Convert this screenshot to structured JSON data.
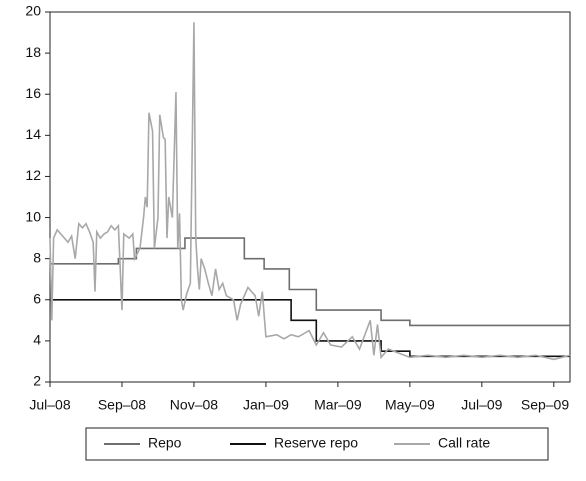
{
  "chart_data": {
    "type": "line",
    "xlim": [
      0,
      14.45
    ],
    "ylim": [
      2,
      20
    ],
    "xticks": [
      {
        "value": 0,
        "label": "Jul–08"
      },
      {
        "value": 2,
        "label": "Sep–08"
      },
      {
        "value": 4,
        "label": "Nov–08"
      },
      {
        "value": 6,
        "label": "Jan–09"
      },
      {
        "value": 8,
        "label": "Mar–09"
      },
      {
        "value": 10,
        "label": "May–09"
      },
      {
        "value": 12,
        "label": "Jul–09"
      },
      {
        "value": 14,
        "label": "Sep–09"
      }
    ],
    "yticks": [
      2,
      4,
      6,
      8,
      10,
      12,
      14,
      16,
      18,
      20
    ],
    "legend": "bottom",
    "series": [
      {
        "name": "Repo",
        "color": "#6e6e6e",
        "step": true,
        "x": [
          0,
          1.9,
          2.4,
          3.75,
          5.4,
          5.95,
          6.65,
          7.4,
          9.2,
          10.0,
          14.45
        ],
        "values": [
          7.75,
          8,
          8.5,
          9,
          8,
          7.5,
          6.5,
          5.5,
          5,
          4.75,
          4.75
        ]
      },
      {
        "name": "Reserve repo",
        "color": "#111111",
        "step": true,
        "x": [
          0,
          6.7,
          7.4,
          9.2,
          10.0,
          14.45
        ],
        "values": [
          6,
          5,
          4,
          3.5,
          3.25,
          3.25
        ]
      },
      {
        "name": "Call rate",
        "color": "#a8a8a8",
        "step": false,
        "x": [
          0,
          0.05,
          0.1,
          0.2,
          0.4,
          0.5,
          0.6,
          0.7,
          0.8,
          0.9,
          1.0,
          1.1,
          1.2,
          1.25,
          1.3,
          1.4,
          1.5,
          1.6,
          1.7,
          1.8,
          1.9,
          2.0,
          2.05,
          2.2,
          2.3,
          2.35,
          2.5,
          2.6,
          2.65,
          2.7,
          2.75,
          2.85,
          2.9,
          3.0,
          3.05,
          3.15,
          3.2,
          3.25,
          3.3,
          3.4,
          3.5,
          3.55,
          3.6,
          3.65,
          3.7,
          3.8,
          3.9,
          4.0,
          4.05,
          4.1,
          4.15,
          4.2,
          4.3,
          4.4,
          4.5,
          4.6,
          4.7,
          4.8,
          4.9,
          5.0,
          5.1,
          5.2,
          5.3,
          5.5,
          5.7,
          5.8,
          5.9,
          6.0,
          6.3,
          6.5,
          6.7,
          6.9,
          7.2,
          7.4,
          7.6,
          7.8,
          8.1,
          8.4,
          8.6,
          8.9,
          9.0,
          9.1,
          9.2,
          9.4,
          9.7,
          10,
          10.5,
          11,
          11.5,
          12,
          12.5,
          13,
          13.5,
          14,
          14.45
        ],
        "values": [
          9,
          5,
          9,
          9.4,
          9,
          8.8,
          9.1,
          8,
          9.7,
          9.5,
          9.7,
          9.3,
          8.8,
          6.4,
          9.3,
          9,
          9.2,
          9.3,
          9.6,
          9.4,
          9.6,
          5.5,
          9.2,
          9,
          9.2,
          8,
          8.5,
          10,
          11,
          10.5,
          15.1,
          14.2,
          8.5,
          10,
          15,
          13.9,
          13.8,
          9,
          11,
          10,
          16.1,
          8.5,
          10.2,
          6,
          5.5,
          6.3,
          6.8,
          19.5,
          9,
          7.5,
          6.5,
          8,
          7.5,
          6.8,
          6.2,
          7.5,
          6.5,
          6.8,
          6.2,
          6.1,
          6,
          5,
          5.8,
          6.6,
          6.2,
          5.2,
          6.4,
          4.2,
          4.3,
          4.1,
          4.3,
          4.2,
          4.5,
          3.8,
          4.4,
          3.8,
          3.7,
          4.2,
          3.6,
          5,
          3.3,
          4.8,
          3.2,
          3.6,
          3.4,
          3.2,
          3.3,
          3.2,
          3.3,
          3.2,
          3.3,
          3.2,
          3.3,
          3.1,
          3.3
        ]
      }
    ]
  }
}
